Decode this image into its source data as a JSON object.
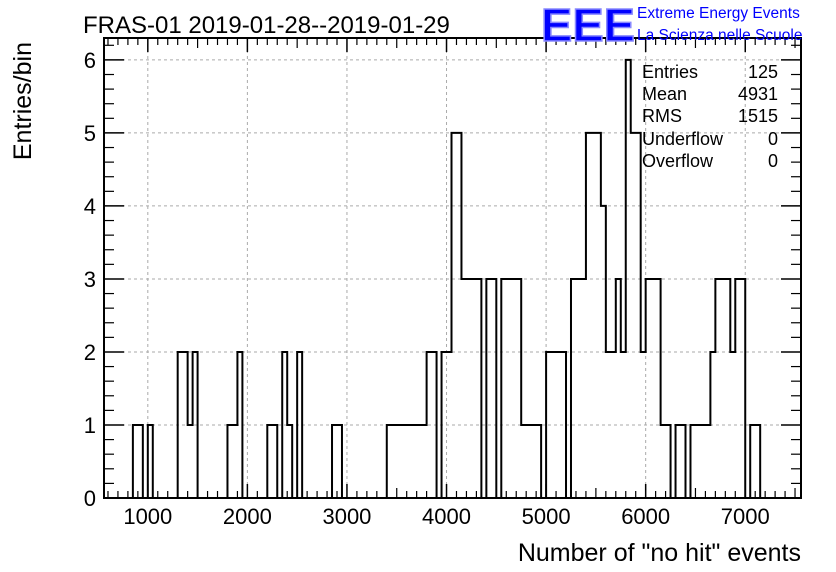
{
  "chart_data": {
    "type": "bar",
    "subtype": "histogram",
    "title": "FRAS-01 2019-01-28--2019-01-29",
    "xlabel": "Number of \"no hit\" events",
    "ylabel": "Entries/bin",
    "xlim": [
      560,
      7560
    ],
    "ylim": [
      0,
      6.3
    ],
    "bin_width": 100,
    "x_ticks": [
      1000,
      2000,
      3000,
      4000,
      5000,
      6000,
      7000
    ],
    "x_tick_labels": [
      "1000",
      "2000",
      "3000",
      "4000",
      "5000",
      "6000",
      "7000"
    ],
    "y_ticks": [
      0,
      1,
      2,
      3,
      4,
      5,
      6
    ],
    "y_tick_labels": [
      "0",
      "1",
      "2",
      "3",
      "4",
      "5",
      "6"
    ],
    "grid": true,
    "bins": [
      {
        "x": 800,
        "value": 0
      },
      {
        "x": 850,
        "value": 1
      },
      {
        "x": 950,
        "value": 0
      },
      {
        "x": 1000,
        "value": 1
      },
      {
        "x": 1050,
        "value": 0
      },
      {
        "x": 1300,
        "value": 2
      },
      {
        "x": 1400,
        "value": 1
      },
      {
        "x": 1450,
        "value": 2
      },
      {
        "x": 1500,
        "value": 0
      },
      {
        "x": 1800,
        "value": 1
      },
      {
        "x": 1900,
        "value": 2
      },
      {
        "x": 1950,
        "value": 0
      },
      {
        "x": 2200,
        "value": 1
      },
      {
        "x": 2300,
        "value": 0
      },
      {
        "x": 2350,
        "value": 2
      },
      {
        "x": 2400,
        "value": 1
      },
      {
        "x": 2450,
        "value": 0
      },
      {
        "x": 2500,
        "value": 2
      },
      {
        "x": 2550,
        "value": 0
      },
      {
        "x": 2850,
        "value": 1
      },
      {
        "x": 2950,
        "value": 0
      },
      {
        "x": 3400,
        "value": 1
      },
      {
        "x": 3800,
        "value": 2
      },
      {
        "x": 3900,
        "value": 0
      },
      {
        "x": 3950,
        "value": 2
      },
      {
        "x": 4050,
        "value": 5
      },
      {
        "x": 4150,
        "value": 3
      },
      {
        "x": 4350,
        "value": 0
      },
      {
        "x": 4400,
        "value": 3
      },
      {
        "x": 4500,
        "value": 0
      },
      {
        "x": 4550,
        "value": 3
      },
      {
        "x": 4750,
        "value": 1
      },
      {
        "x": 4950,
        "value": 0
      },
      {
        "x": 5000,
        "value": 2
      },
      {
        "x": 5200,
        "value": 0
      },
      {
        "x": 5250,
        "value": 3
      },
      {
        "x": 5400,
        "value": 5
      },
      {
        "x": 5550,
        "value": 4
      },
      {
        "x": 5600,
        "value": 2
      },
      {
        "x": 5700,
        "value": 3
      },
      {
        "x": 5750,
        "value": 2
      },
      {
        "x": 5800,
        "value": 6
      },
      {
        "x": 5850,
        "value": 5
      },
      {
        "x": 5950,
        "value": 2
      },
      {
        "x": 6000,
        "value": 3
      },
      {
        "x": 6150,
        "value": 1
      },
      {
        "x": 6250,
        "value": 0
      },
      {
        "x": 6300,
        "value": 1
      },
      {
        "x": 6400,
        "value": 0
      },
      {
        "x": 6450,
        "value": 1
      },
      {
        "x": 6650,
        "value": 2
      },
      {
        "x": 6700,
        "value": 3
      },
      {
        "x": 6850,
        "value": 2
      },
      {
        "x": 6900,
        "value": 3
      },
      {
        "x": 7000,
        "value": 0
      },
      {
        "x": 7050,
        "value": 1
      },
      {
        "x": 7150,
        "value": 0
      }
    ],
    "stats_box": {
      "position": "top-right",
      "rows": [
        {
          "label": "Entries",
          "value": "125"
        },
        {
          "label": "Mean",
          "value": "4931"
        },
        {
          "label": "RMS",
          "value": "1515"
        },
        {
          "label": "Underflow",
          "value": "0"
        },
        {
          "label": "Overflow",
          "value": "0"
        }
      ]
    },
    "series_color": "#000000",
    "grid_color": "#aaaaaa"
  },
  "logo": {
    "text": "EEE",
    "line1": "Extreme Energy Events",
    "line2": "La Scienza nelle Scuole",
    "color": "#0000ff"
  }
}
